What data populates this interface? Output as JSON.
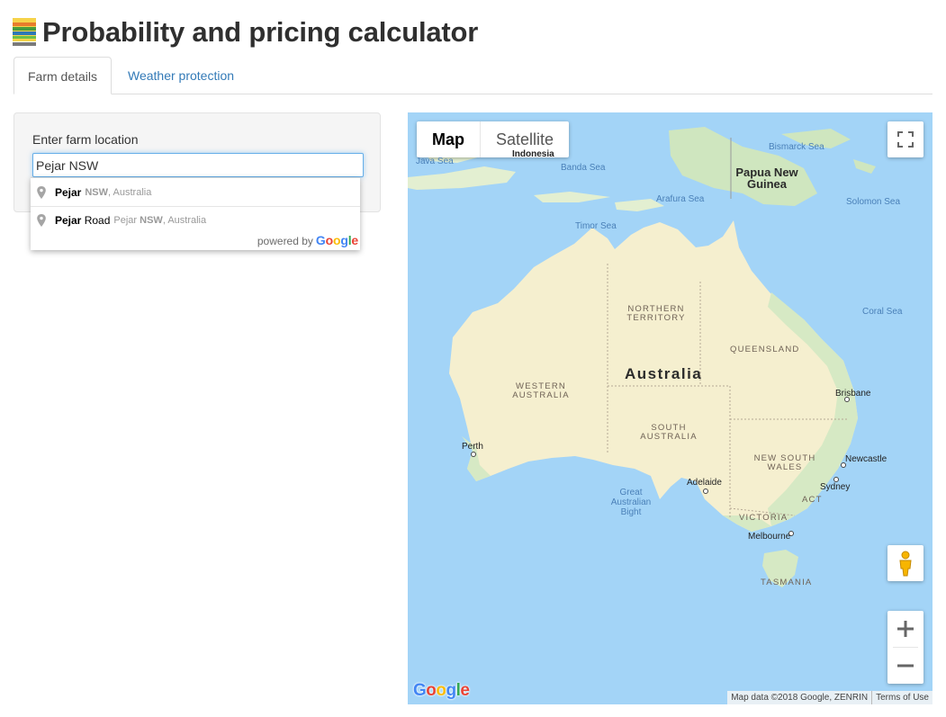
{
  "header": {
    "title": "Probability and pricing calculator",
    "logo_icon": "farm-logo-icon"
  },
  "tabs": [
    {
      "label": "Farm details",
      "active": true
    },
    {
      "label": "Weather protection",
      "active": false
    }
  ],
  "farm": {
    "label": "Enter farm location",
    "value": "Pejar NSW"
  },
  "autocomplete": {
    "items": [
      {
        "main": "Pejar",
        "main_rest": "",
        "secondary_bold": "NSW",
        "secondary_rest": ", Australia"
      },
      {
        "main": "Pejar",
        "main_rest": " Road",
        "secondary_bold": "NSW",
        "secondary_rest": ", Australia",
        "secondary_prefix": "Pejar "
      }
    ],
    "powered_by": "powered by",
    "brand": "Google"
  },
  "map": {
    "type_buttons": [
      "Map",
      "Satellite"
    ],
    "selected_type": "Map",
    "labels": {
      "indonesia": "Indonesia",
      "java_sea": "Java Sea",
      "banda_sea": "Banda Sea",
      "bismarck_sea": "Bismarck Sea",
      "png": "Papua New Guinea",
      "arafura_sea": "Arafura Sea",
      "solomon_sea": "Solomon Sea",
      "timor_sea": "Timor Sea",
      "coral_sea": "Coral Sea",
      "nt": "NORTHERN TERRITORY",
      "qld": "QUEENSLAND",
      "australia": "Australia",
      "wa": "WESTERN AUSTRALIA",
      "sa": "SOUTH AUSTRALIA",
      "nsw": "NEW SOUTH WALES",
      "act": "ACT",
      "vic": "VICTORIA",
      "tas": "TASMANIA",
      "gab": "Great Australian Bight",
      "brisbane": "Brisbane",
      "perth": "Perth",
      "adelaide": "Adelaide",
      "newcastle": "Newcastle",
      "sydney": "Sydney",
      "melbourne": "Melbourne"
    },
    "attribution": "Map data ©2018 Google, ZENRIN",
    "terms": "Terms of Use",
    "google": "Google",
    "colors": {
      "water": "#a3d4f7",
      "land": "#f5efcf",
      "green": "#cfe6bf",
      "accent_link": "#337ab7"
    }
  }
}
